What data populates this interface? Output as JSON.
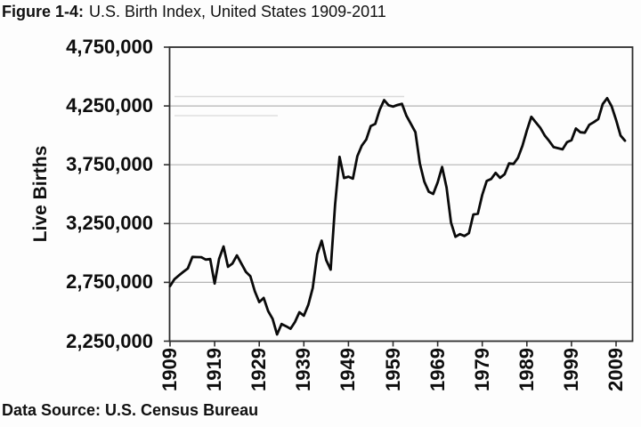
{
  "figure": {
    "title_prefix": "Figure 1-4:",
    "title_rest": "U.S. Birth Index, United States 1909-2011",
    "footer": "Data Source: U.S. Census Bureau"
  },
  "chart_data": {
    "type": "line",
    "title": "Figure 1-4: U.S. Birth Index, United States 1909-2011",
    "xlabel": "",
    "ylabel": "Live Births",
    "source": "U.S. Census Bureau",
    "x_start": 1909,
    "x_end": 2011,
    "ylim": [
      2250000,
      4750000
    ],
    "y_ticks": [
      2250000,
      2750000,
      3250000,
      3750000,
      4250000,
      4750000
    ],
    "y_tick_labels": [
      "4,750,000",
      "4,250,000",
      "3,750,000",
      "3,250,000",
      "2,750,000",
      "2,250,000"
    ],
    "x_tick_years": [
      1909,
      1919,
      1929,
      1939,
      1949,
      1959,
      1969,
      1979,
      1989,
      1999,
      2009
    ],
    "x_tick_labels": [
      "1909",
      "1919",
      "1929",
      "1939",
      "1949",
      "1959",
      "1969",
      "1979",
      "1989",
      "1999",
      "2009"
    ],
    "grid": "horizontal-only",
    "legend": "none",
    "line_color": "#0a0a0a",
    "gridline_color": "#b4b4b4",
    "frame_color": "#2e2e2e",
    "series": [
      {
        "name": "Live Births",
        "years": [
          1909,
          1910,
          1911,
          1912,
          1913,
          1914,
          1915,
          1916,
          1917,
          1918,
          1919,
          1920,
          1921,
          1922,
          1923,
          1924,
          1925,
          1926,
          1927,
          1928,
          1929,
          1930,
          1931,
          1932,
          1933,
          1934,
          1935,
          1936,
          1937,
          1938,
          1939,
          1940,
          1941,
          1942,
          1943,
          1944,
          1945,
          1946,
          1947,
          1948,
          1949,
          1950,
          1951,
          1952,
          1953,
          1954,
          1955,
          1956,
          1957,
          1958,
          1959,
          1960,
          1961,
          1962,
          1963,
          1964,
          1965,
          1966,
          1967,
          1968,
          1969,
          1970,
          1971,
          1972,
          1973,
          1974,
          1975,
          1976,
          1977,
          1978,
          1979,
          1980,
          1981,
          1982,
          1983,
          1984,
          1985,
          1986,
          1987,
          1988,
          1989,
          1990,
          1991,
          1992,
          1993,
          1994,
          1995,
          1996,
          1997,
          1998,
          1999,
          2000,
          2001,
          2002,
          2003,
          2004,
          2005,
          2006,
          2007,
          2008,
          2009,
          2010,
          2011
        ],
        "values": [
          2718000,
          2777000,
          2809000,
          2840000,
          2869000,
          2966000,
          2965000,
          2964000,
          2944000,
          2948000,
          2740000,
          2950000,
          3055000,
          2882000,
          2910000,
          2979000,
          2909000,
          2839000,
          2802000,
          2674000,
          2582000,
          2618000,
          2506000,
          2440000,
          2307000,
          2396000,
          2377000,
          2355000,
          2413000,
          2496000,
          2466000,
          2559000,
          2703000,
          2989000,
          3104000,
          2939000,
          2858000,
          3411000,
          3817000,
          3637000,
          3649000,
          3632000,
          3823000,
          3913000,
          3965000,
          4078000,
          4097000,
          4218000,
          4300000,
          4255000,
          4245000,
          4258000,
          4268000,
          4167000,
          4098000,
          4027000,
          3760000,
          3606000,
          3521000,
          3502000,
          3600000,
          3731000,
          3556000,
          3258000,
          3137000,
          3160000,
          3144000,
          3168000,
          3327000,
          3333000,
          3494000,
          3612000,
          3629000,
          3681000,
          3639000,
          3669000,
          3761000,
          3757000,
          3809000,
          3910000,
          4041000,
          4158000,
          4111000,
          4065000,
          4000000,
          3953000,
          3900000,
          3891000,
          3881000,
          3942000,
          3959000,
          4059000,
          4026000,
          4022000,
          4090000,
          4112000,
          4138000,
          4266000,
          4316000,
          4248000,
          4131000,
          3999000,
          3954000
        ]
      }
    ]
  }
}
